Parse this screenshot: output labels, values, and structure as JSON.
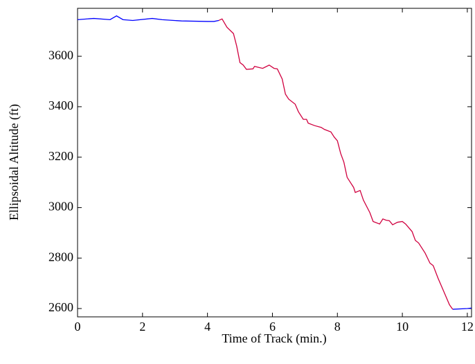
{
  "chart_data": {
    "type": "line",
    "xlabel": "Time of Track (min.)",
    "ylabel": "Ellipsoidal Altitude (ft)",
    "x": [
      0,
      0.5,
      1.0,
      1.2,
      1.4,
      1.7,
      2.3,
      2.6,
      3.2,
      4.0,
      4.2,
      4.35,
      4.45,
      4.6,
      4.8,
      4.9,
      5.0,
      5.1,
      5.2,
      5.4,
      5.45,
      5.6,
      5.7,
      5.9,
      6.05,
      6.15,
      6.3,
      6.4,
      6.5,
      6.7,
      6.8,
      6.95,
      7.05,
      7.1,
      7.3,
      7.5,
      7.6,
      7.8,
      7.9,
      8.0,
      8.1,
      8.2,
      8.3,
      8.5,
      8.55,
      8.7,
      8.8,
      9.0,
      9.1,
      9.3,
      9.4,
      9.5,
      9.6,
      9.7,
      9.85,
      10.0,
      10.1,
      10.3,
      10.4,
      10.5,
      10.7,
      10.85,
      10.95,
      11.1,
      11.3,
      11.45,
      11.55,
      12.0,
      12.13
    ],
    "series": [
      {
        "color": "#0000ff",
        "values": [
          3745,
          3750,
          3745,
          3760,
          3745,
          3742,
          3750,
          3745,
          3740,
          3738,
          3738,
          3742,
          null,
          null,
          null,
          null,
          null,
          null,
          null,
          null,
          null,
          null,
          null,
          null,
          null,
          null,
          null,
          null,
          null,
          null,
          null,
          null,
          null,
          null,
          null,
          null,
          null,
          null,
          null,
          null,
          null,
          null,
          null,
          null,
          null,
          null,
          null,
          null,
          null,
          null,
          null,
          null,
          null,
          null,
          null,
          null,
          null,
          null,
          null,
          null,
          null,
          null,
          null,
          null,
          null,
          null,
          2597,
          2600,
          2602
        ]
      },
      {
        "color": "#d0003f",
        "values": [
          null,
          null,
          null,
          null,
          null,
          null,
          null,
          null,
          null,
          null,
          null,
          3742,
          3748,
          3715,
          3690,
          3640,
          3575,
          3565,
          3548,
          3550,
          3560,
          3555,
          3552,
          3565,
          3552,
          3550,
          3510,
          3450,
          3430,
          3410,
          3380,
          3350,
          3350,
          3335,
          3325,
          3318,
          3310,
          3300,
          3280,
          3265,
          3215,
          3180,
          3120,
          3080,
          3060,
          3068,
          3030,
          2980,
          2945,
          2935,
          2955,
          2950,
          2948,
          2932,
          2942,
          2945,
          2935,
          2905,
          2870,
          2860,
          2820,
          2780,
          2770,
          2720,
          2660,
          2615,
          2597,
          null,
          null
        ]
      }
    ],
    "xlim": [
      0,
      12.13
    ],
    "xticks": [
      0,
      2,
      4,
      6,
      8,
      10,
      12
    ],
    "ylim": [
      2567,
      3790
    ],
    "yticks": [
      2600,
      2800,
      3000,
      3200,
      3400,
      3600
    ],
    "grid": false
  }
}
